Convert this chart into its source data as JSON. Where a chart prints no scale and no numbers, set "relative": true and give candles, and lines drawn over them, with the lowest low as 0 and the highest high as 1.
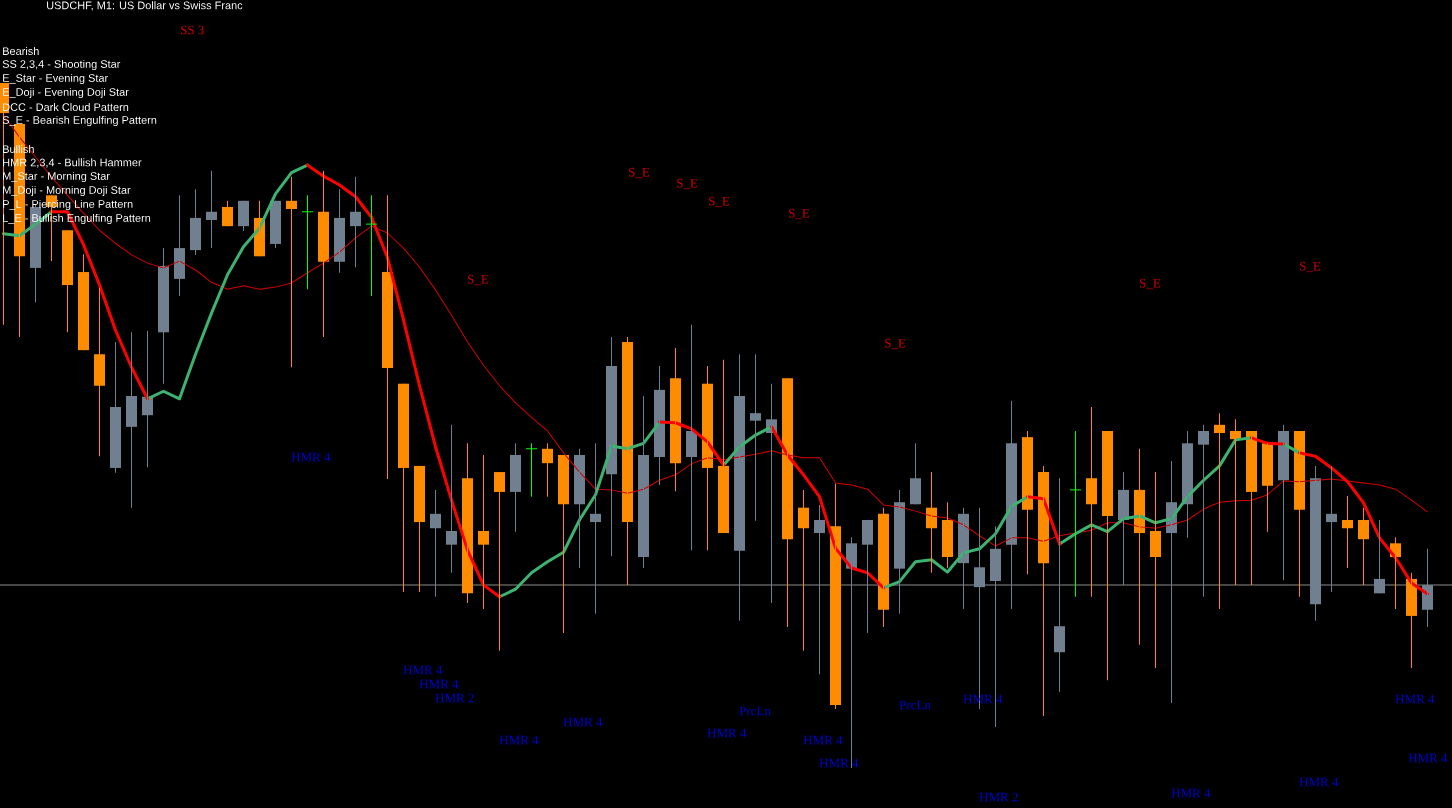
{
  "chart_data": {
    "type": "candlestick",
    "title": "USDCHF, M1:  US Dollar vs Swiss Franc",
    "relative": true,
    "categories": [
      null,
      null,
      null,
      null,
      null,
      null,
      null,
      null,
      null,
      null,
      null,
      null,
      null,
      null,
      null,
      null,
      null,
      null,
      null,
      null,
      null,
      null,
      null,
      null,
      null,
      null,
      null,
      null,
      null,
      null,
      null,
      null,
      null,
      null,
      null,
      null,
      null,
      null,
      null,
      null,
      null,
      null,
      null,
      null,
      null,
      null,
      null,
      null,
      null,
      null,
      null,
      null,
      null,
      null,
      null,
      null,
      null,
      null,
      null,
      null,
      null,
      null,
      null,
      null,
      null,
      null,
      null,
      null,
      null,
      null,
      null,
      null,
      null,
      null,
      null,
      null,
      null,
      null,
      null,
      null,
      null,
      null,
      null,
      null,
      null,
      null,
      null,
      null,
      null,
      null
    ],
    "ohlc": [
      [
        1.0,
        1.0,
        0.647,
        0.956
      ],
      [
        0.94,
        0.94,
        0.629,
        0.747
      ],
      [
        0.73,
        0.822,
        0.68,
        0.819
      ],
      [
        0.836,
        0.836,
        0.74,
        0.819
      ],
      [
        0.785,
        0.785,
        0.636,
        0.705
      ],
      [
        0.724,
        0.75,
        0.61,
        0.61
      ],
      [
        0.604,
        0.701,
        0.455,
        0.558
      ],
      [
        0.438,
        0.622,
        0.431,
        0.527
      ],
      [
        0.498,
        0.636,
        0.38,
        0.543
      ],
      [
        0.515,
        0.638,
        0.439,
        0.542
      ],
      [
        0.636,
        0.759,
        0.561,
        0.733
      ],
      [
        0.714,
        0.836,
        0.689,
        0.759
      ],
      [
        0.756,
        0.845,
        0.749,
        0.803
      ],
      [
        0.8,
        0.872,
        0.759,
        0.812
      ],
      [
        0.819,
        0.828,
        0.791,
        0.791
      ],
      [
        0.791,
        0.828,
        0.784,
        0.828
      ],
      [
        0.803,
        0.828,
        0.747,
        0.747
      ],
      [
        0.765,
        0.828,
        0.759,
        0.828
      ],
      [
        0.828,
        0.863,
        0.585,
        0.816
      ],
      [
        0.812,
        0.836,
        0.699,
        0.812
      ],
      [
        0.812,
        0.872,
        0.629,
        0.739
      ],
      [
        0.739,
        0.845,
        0.723,
        0.803
      ],
      [
        0.791,
        0.863,
        0.731,
        0.812
      ],
      [
        0.794,
        0.836,
        0.689,
        0.794
      ],
      [
        0.724,
        0.836,
        0.422,
        0.584
      ],
      [
        0.561,
        0.561,
        0.257,
        0.438
      ],
      [
        0.441,
        0.441,
        0.257,
        0.359
      ],
      [
        0.35,
        0.406,
        0.25,
        0.371
      ],
      [
        0.326,
        0.501,
        0.285,
        0.346
      ],
      [
        0.423,
        0.474,
        0.241,
        0.255
      ],
      [
        0.346,
        0.457,
        0.232,
        0.326
      ],
      [
        0.432,
        0.432,
        0.171,
        0.403
      ],
      [
        0.403,
        0.474,
        0.345,
        0.457
      ],
      [
        0.466,
        0.474,
        0.396,
        0.466
      ],
      [
        0.466,
        0.474,
        0.396,
        0.445
      ],
      [
        0.457,
        0.457,
        0.197,
        0.385
      ],
      [
        0.385,
        0.466,
        0.292,
        0.457
      ],
      [
        0.359,
        0.474,
        0.225,
        0.371
      ],
      [
        0.429,
        0.629,
        0.309,
        0.587
      ],
      [
        0.622,
        0.629,
        0.267,
        0.359
      ],
      [
        0.308,
        0.543,
        0.292,
        0.457
      ],
      [
        0.454,
        0.587,
        0.413,
        0.552
      ],
      [
        0.569,
        0.613,
        0.404,
        0.445
      ],
      [
        0.454,
        0.647,
        0.318,
        0.492
      ],
      [
        0.561,
        0.587,
        0.318,
        0.438
      ],
      [
        0.441,
        0.596,
        0.343,
        0.343
      ],
      [
        0.317,
        0.604,
        0.215,
        0.543
      ],
      [
        0.507,
        0.604,
        0.361,
        0.518
      ],
      [
        0.489,
        0.561,
        0.241,
        0.509
      ],
      [
        0.569,
        0.569,
        0.206,
        0.334
      ],
      [
        0.38,
        0.406,
        0.171,
        0.35
      ],
      [
        0.343,
        0.384,
        0.137,
        0.362
      ],
      [
        0.353,
        0.415,
        0.086,
        0.092
      ],
      [
        0.291,
        0.337,
        0.0,
        0.328
      ],
      [
        0.326,
        0.362,
        0.197,
        0.362
      ],
      [
        0.371,
        0.38,
        0.206,
        0.231
      ],
      [
        0.291,
        0.406,
        0.225,
        0.388
      ],
      [
        0.385,
        0.474,
        0.385,
        0.423
      ],
      [
        0.38,
        0.432,
        0.285,
        0.35
      ],
      [
        0.362,
        0.388,
        0.292,
        0.308
      ],
      [
        0.299,
        0.38,
        0.232,
        0.371
      ],
      [
        0.264,
        0.38,
        0.086,
        0.293
      ],
      [
        0.273,
        0.353,
        0.06,
        0.32
      ],
      [
        0.326,
        0.536,
        0.232,
        0.474
      ],
      [
        0.483,
        0.492,
        0.283,
        0.377
      ],
      [
        0.432,
        0.441,
        0.076,
        0.299
      ],
      [
        0.169,
        0.423,
        0.111,
        0.207
      ],
      [
        0.406,
        0.492,
        0.25,
        0.406
      ],
      [
        0.423,
        0.527,
        0.25,
        0.385
      ],
      [
        0.492,
        0.492,
        0.128,
        0.368
      ],
      [
        0.362,
        0.432,
        0.267,
        0.406
      ],
      [
        0.406,
        0.466,
        0.18,
        0.343
      ],
      [
        0.346,
        0.432,
        0.146,
        0.308
      ],
      [
        0.343,
        0.448,
        0.095,
        0.388
      ],
      [
        0.385,
        0.492,
        0.336,
        0.474
      ],
      [
        0.472,
        0.501,
        0.25,
        0.492
      ],
      [
        0.501,
        0.518,
        0.232,
        0.489
      ],
      [
        0.492,
        0.509,
        0.267,
        0.48
      ],
      [
        0.492,
        0.492,
        0.267,
        0.403
      ],
      [
        0.474,
        0.474,
        0.345,
        0.412
      ],
      [
        0.42,
        0.501,
        0.274,
        0.492
      ],
      [
        0.492,
        0.492,
        0.25,
        0.377
      ],
      [
        0.239,
        0.441,
        0.215,
        0.423
      ],
      [
        0.359,
        0.441,
        0.257,
        0.371
      ],
      [
        0.362,
        0.397,
        0.292,
        0.35
      ],
      [
        0.362,
        0.38,
        0.267,
        0.334
      ],
      [
        0.255,
        0.362,
        0.255,
        0.276
      ],
      [
        0.328,
        0.337,
        0.232,
        0.308
      ],
      [
        0.276,
        0.285,
        0.146,
        0.222
      ],
      [
        0.231,
        0.32,
        0.206,
        0.267
      ]
    ],
    "colors": [
      "#ff8c00",
      "#ff8c00",
      "#708090",
      "#ff8c00",
      "#ff8c00",
      "#ff8c00",
      "#ff8c00",
      "#708090",
      "#708090",
      "#708090",
      "#708090",
      "#708090",
      "#708090",
      "#708090",
      "#ff8c00",
      "#708090",
      "#ff8c00",
      "#708090",
      "#ff8c00",
      "#00ff00",
      "#ff8c00",
      "#708090",
      "#708090",
      "#00ff00",
      "#ff8c00",
      "#ff8c00",
      "#ff8c00",
      "#708090",
      "#708090",
      "#ff8c00",
      "#ff8c00",
      "#ff8c00",
      "#708090",
      "#00ff00",
      "#ff8c00",
      "#ff8c00",
      "#708090",
      "#708090",
      "#708090",
      "#ff8c00",
      "#708090",
      "#708090",
      "#ff8c00",
      "#708090",
      "#ff8c00",
      "#ff8c00",
      "#708090",
      "#708090",
      "#708090",
      "#ff8c00",
      "#ff8c00",
      "#708090",
      "#ff8c00",
      "#708090",
      "#708090",
      "#ff8c00",
      "#708090",
      "#708090",
      "#ff8c00",
      "#ff8c00",
      "#708090",
      "#708090",
      "#708090",
      "#708090",
      "#ff8c00",
      "#ff8c00",
      "#708090",
      "#00ff00",
      "#ff8c00",
      "#ff8c00",
      "#708090",
      "#ff8c00",
      "#ff8c00",
      "#708090",
      "#708090",
      "#708090",
      "#ff8c00",
      "#ff8c00",
      "#ff8c00",
      "#ff8c00",
      "#708090",
      "#ff8c00",
      "#708090",
      "#708090",
      "#ff8c00",
      "#ff8c00",
      "#708090",
      "#ff8c00",
      "#ff8c00",
      "#708090"
    ],
    "series": [
      {
        "type": "line",
        "color": "#3cb371",
        "values": [
          0.78,
          0.777,
          0.794,
          0.812,
          null,
          null,
          null,
          null,
          null,
          0.539,
          0.55,
          0.539,
          0.604,
          0.664,
          0.72,
          0.761,
          0.788,
          0.838,
          0.869,
          0.88,
          null,
          null,
          null,
          null,
          null,
          null,
          null,
          null,
          null,
          null,
          null,
          0.25,
          0.261,
          0.285,
          0.301,
          0.315,
          0.362,
          0.399,
          0.47,
          0.466,
          0.474,
          0.505,
          null,
          null,
          null,
          0.442,
          0.469,
          0.486,
          0.498,
          null,
          null,
          null,
          null,
          null,
          null,
          0.263,
          0.272,
          0.301,
          0.304,
          0.286,
          0.314,
          0.32,
          0.342,
          0.382,
          0.396,
          null,
          0.327,
          0.342,
          0.355,
          0.345,
          0.364,
          0.368,
          0.358,
          0.364,
          0.396,
          0.42,
          0.441,
          0.479,
          0.482,
          null,
          0.473,
          0.46,
          null,
          null,
          null,
          null,
          null,
          null,
          null,
          null
        ]
      },
      {
        "type": "line",
        "color": "#ff0000",
        "values": [
          null,
          null,
          null,
          0.812,
          0.812,
          0.764,
          0.705,
          0.639,
          0.585,
          0.539,
          null,
          null,
          null,
          null,
          null,
          null,
          null,
          null,
          null,
          0.88,
          0.864,
          0.851,
          0.834,
          0.804,
          0.745,
          0.654,
          0.558,
          0.469,
          0.391,
          0.318,
          0.267,
          0.25,
          null,
          null,
          null,
          null,
          null,
          null,
          null,
          null,
          null,
          0.505,
          0.504,
          0.495,
          0.476,
          0.442,
          null,
          null,
          0.498,
          0.457,
          0.428,
          0.396,
          0.321,
          0.292,
          0.285,
          0.263,
          null,
          null,
          null,
          null,
          null,
          null,
          null,
          null,
          0.396,
          0.393,
          0.327,
          null,
          null,
          null,
          null,
          null,
          null,
          null,
          null,
          null,
          null,
          null,
          0.482,
          0.474,
          0.473,
          null,
          null,
          null,
          null,
          null,
          null,
          null,
          null,
          null
        ]
      },
      {
        "type": "line",
        "color": "#ff0000",
        "values": [
          null,
          null,
          null,
          null,
          null,
          null,
          null,
          null,
          null,
          null,
          null,
          null,
          null,
          null,
          null,
          null,
          null,
          null,
          null,
          null,
          null,
          null,
          null,
          null,
          null,
          null,
          null,
          null,
          null,
          null,
          null,
          null,
          null,
          null,
          null,
          null,
          null,
          null,
          null,
          null,
          null,
          null,
          null,
          null,
          null,
          null,
          null,
          null,
          null,
          null,
          null,
          null,
          null,
          null,
          null,
          null,
          null,
          null,
          null,
          null,
          null,
          null,
          null,
          null,
          null,
          null,
          null,
          null,
          null,
          null,
          null,
          null,
          null,
          null,
          null,
          null,
          null,
          null,
          null,
          null,
          null,
          0.46,
          0.455,
          0.438,
          0.418,
          0.387,
          0.336,
          0.307,
          0.27,
          0.254
        ]
      },
      {
        "type": "line",
        "color": "#d40000",
        "values": [
          0.953,
          0.921,
          0.892,
          0.863,
          0.836,
          0.81,
          0.785,
          0.766,
          0.749,
          0.737,
          0.73,
          0.74,
          0.727,
          0.709,
          0.699,
          0.704,
          0.699,
          0.702,
          0.708,
          0.723,
          0.737,
          0.753,
          0.774,
          0.791,
          0.781,
          0.759,
          0.731,
          0.698,
          0.661,
          0.622,
          0.588,
          0.558,
          0.533,
          0.512,
          0.492,
          0.46,
          0.432,
          0.407,
          0.406,
          0.401,
          0.407,
          0.42,
          0.428,
          0.444,
          0.453,
          0.45,
          0.454,
          0.458,
          0.463,
          0.457,
          0.453,
          0.453,
          0.416,
          0.413,
          0.407,
          0.384,
          0.381,
          0.375,
          0.368,
          0.365,
          0.355,
          0.339,
          0.324,
          0.336,
          0.336,
          0.331,
          0.339,
          0.343,
          0.347,
          0.358,
          0.358,
          0.352,
          0.35,
          0.355,
          0.362,
          0.378,
          0.388,
          0.39,
          0.391,
          0.399,
          0.419,
          0.418,
          0.42,
          0.422,
          0.419,
          0.416,
          0.413,
          0.407,
          0.391,
          0.374
        ]
      }
    ],
    "ref_lines": [
      {
        "axis": "y",
        "value": 0.267,
        "color": "#8c8c8c"
      }
    ],
    "annotations": [
      "Bearish",
      "SS 2,3,4 - Shooting Star",
      "E_Star - Evening Star",
      "E_Doji - Evening Doji Star",
      "DCC - Dark Cloud Pattern",
      "S_E - Bearish Engulfing Pattern",
      "Bullish",
      "HMR 2,3,4 - Bullish Hammer",
      "M_Star - Morning Star",
      "M_Doji - Morning Doji Star",
      "P_L - Piercing Line Pattern",
      "L_E - Bullish Engulfing Pattern",
      "SS 3",
      "S_E",
      "S_E",
      "S_E",
      "S_E",
      "S_E",
      "S_E",
      "S_E",
      "S_E",
      "HMR 4",
      "HMR 4",
      "HMR 4",
      "HMR 2",
      "HMR 4",
      "HMR 4",
      "HMR 4",
      "PrcLn",
      "HMR 4",
      "HMR 4",
      "PrcLn",
      "HMR 4",
      "HMR 2",
      "HMR 4",
      "HMR 4",
      "HMR 4",
      "HMR 4"
    ]
  }
}
